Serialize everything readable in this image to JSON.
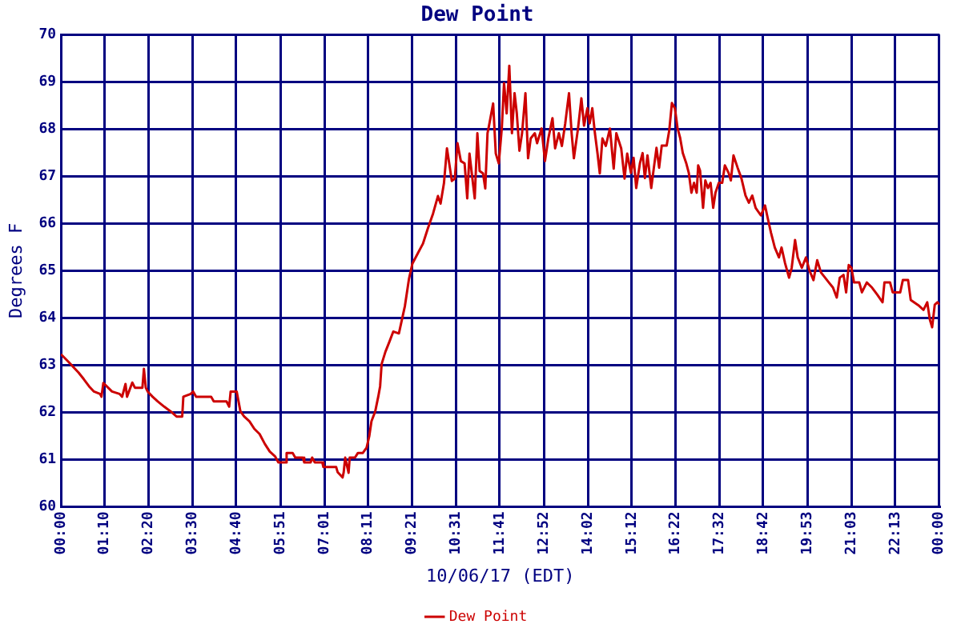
{
  "chart_data": {
    "type": "line",
    "title": "Dew Point",
    "xlabel": "10/06/17 (EDT)",
    "ylabel": "Degrees F",
    "legend": "bottom",
    "grid": true,
    "marker": "none",
    "line_style": "solid",
    "xlim": [
      0,
      23.4
    ],
    "xticks": [
      {
        "value": 0,
        "label": "00:00"
      },
      {
        "value": 1.167,
        "label": "01:10"
      },
      {
        "value": 2.333,
        "label": "02:20"
      },
      {
        "value": 3.5,
        "label": "03:30"
      },
      {
        "value": 4.667,
        "label": "04:40"
      },
      {
        "value": 5.85,
        "label": "05:51"
      },
      {
        "value": 7.017,
        "label": "07:01"
      },
      {
        "value": 8.183,
        "label": "08:11"
      },
      {
        "value": 9.35,
        "label": "09:21"
      },
      {
        "value": 10.517,
        "label": "10:31"
      },
      {
        "value": 11.683,
        "label": "11:41"
      },
      {
        "value": 12.867,
        "label": "12:52"
      },
      {
        "value": 14.033,
        "label": "14:02"
      },
      {
        "value": 15.2,
        "label": "15:12"
      },
      {
        "value": 16.367,
        "label": "16:22"
      },
      {
        "value": 17.533,
        "label": "17:32"
      },
      {
        "value": 18.7,
        "label": "18:42"
      },
      {
        "value": 19.883,
        "label": "19:53"
      },
      {
        "value": 21.05,
        "label": "21:03"
      },
      {
        "value": 22.217,
        "label": "22:13"
      },
      {
        "value": 23.38,
        "label": "00:00"
      }
    ],
    "ylim": [
      60,
      70
    ],
    "yticks": [
      60,
      61,
      62,
      63,
      64,
      65,
      66,
      67,
      68,
      69,
      70
    ],
    "series": [
      {
        "name": "Dew Point",
        "color": "#cc0000",
        "x": [
          0,
          0.2,
          0.34,
          0.47,
          0.61,
          0.75,
          0.88,
          1.04,
          1.08,
          1.13,
          1.22,
          1.36,
          1.56,
          1.63,
          1.72,
          1.76,
          1.9,
          1.97,
          2.17,
          2.21,
          2.26,
          2.31,
          2.44,
          2.58,
          2.75,
          2.92,
          3.08,
          3.23,
          3.26,
          3.46,
          3.52,
          3.6,
          4.0,
          4.07,
          4.41,
          4.48,
          4.52,
          4.68,
          4.78,
          4.88,
          5.02,
          5.15,
          5.29,
          5.43,
          5.56,
          5.7,
          5.79,
          5.97,
          6.01,
          6.17,
          6.24,
          6.44,
          6.48,
          6.65,
          6.69,
          6.76,
          6.96,
          6.99,
          7.33,
          7.37,
          7.5,
          7.53,
          7.57,
          7.66,
          7.69,
          7.83,
          7.91,
          8.04,
          8.14,
          8.21,
          8.27,
          8.37,
          8.45,
          8.5,
          8.54,
          8.64,
          8.75,
          8.85,
          9.0,
          9.16,
          9.27,
          9.36,
          9.5,
          9.64,
          9.77,
          9.91,
          10.04,
          10.11,
          10.2,
          10.28,
          10.35,
          10.41,
          10.49,
          10.56,
          10.65,
          10.75,
          10.82,
          10.88,
          10.95,
          11.02,
          11.09,
          11.15,
          11.24,
          11.3,
          11.36,
          11.4,
          11.51,
          11.58,
          11.66,
          11.74,
          11.8,
          11.87,
          11.94,
          12.01,
          12.08,
          12.14,
          12.21,
          12.28,
          12.37,
          12.44,
          12.51,
          12.62,
          12.68,
          12.8,
          12.89,
          12.98,
          13.09,
          13.16,
          13.26,
          13.34,
          13.43,
          13.53,
          13.6,
          13.66,
          13.77,
          13.86,
          13.93,
          14.02,
          14.08,
          14.15,
          14.22,
          14.29,
          14.35,
          14.42,
          14.51,
          14.62,
          14.72,
          14.79,
          14.92,
          15.01,
          15.08,
          15.18,
          15.25,
          15.32,
          15.42,
          15.49,
          15.55,
          15.62,
          15.72,
          15.79,
          15.86,
          15.93,
          16.0,
          16.13,
          16.2,
          16.27,
          16.35,
          16.42,
          16.49,
          16.56,
          16.65,
          16.72,
          16.79,
          16.86,
          16.93,
          16.97,
          17.02,
          17.1,
          17.16,
          17.23,
          17.3,
          17.37,
          17.43,
          17.52,
          17.61,
          17.68,
          17.78,
          17.84,
          17.91,
          18.02,
          18.12,
          18.23,
          18.32,
          18.41,
          18.5,
          18.64,
          18.75,
          18.82,
          18.91,
          19.01,
          19.12,
          19.19,
          19.28,
          19.39,
          19.46,
          19.55,
          19.62,
          19.73,
          19.84,
          19.93,
          20.04,
          20.14,
          20.24,
          20.35,
          20.45,
          20.56,
          20.66,
          20.74,
          20.84,
          20.91,
          20.98,
          21.05,
          21.12,
          21.26,
          21.33,
          21.46,
          21.6,
          21.74,
          21.88,
          21.93,
          22.08,
          22.15,
          22.35,
          22.42,
          22.56,
          22.63,
          22.83,
          22.97,
          23.07,
          23.14,
          23.2,
          23.27,
          23.34,
          23.4
        ],
        "values": [
          63.23,
          63.07,
          62.95,
          62.84,
          62.7,
          62.55,
          62.44,
          62.39,
          62.33,
          62.62,
          62.55,
          62.44,
          62.39,
          62.33,
          62.6,
          62.33,
          62.63,
          62.52,
          62.52,
          62.92,
          62.52,
          62.44,
          62.33,
          62.23,
          62.12,
          62.02,
          61.91,
          61.91,
          62.33,
          62.39,
          62.44,
          62.33,
          62.33,
          62.23,
          62.23,
          62.12,
          62.44,
          62.44,
          62.02,
          61.91,
          61.81,
          61.65,
          61.54,
          61.33,
          61.17,
          61.07,
          60.94,
          60.94,
          61.14,
          61.14,
          61.04,
          61.04,
          60.94,
          60.94,
          61.04,
          60.94,
          60.94,
          60.84,
          60.84,
          60.73,
          60.62,
          60.73,
          61.04,
          60.72,
          61.04,
          61.04,
          61.14,
          61.14,
          61.25,
          61.49,
          61.81,
          62.02,
          62.33,
          62.55,
          63.02,
          63.28,
          63.5,
          63.71,
          63.67,
          64.25,
          64.83,
          65.15,
          65.36,
          65.57,
          65.89,
          66.21,
          66.58,
          66.42,
          66.85,
          67.59,
          67.22,
          66.9,
          66.95,
          67.7,
          67.32,
          67.27,
          66.53,
          67.48,
          67.0,
          66.53,
          67.91,
          67.11,
          67.06,
          66.74,
          67.91,
          68.07,
          68.54,
          67.48,
          67.27,
          68.01,
          68.97,
          68.33,
          69.34,
          67.91,
          68.76,
          68.33,
          67.54,
          67.91,
          68.76,
          67.38,
          67.8,
          67.91,
          67.7,
          68.01,
          67.32,
          67.8,
          68.23,
          67.59,
          67.91,
          67.64,
          68.12,
          68.76,
          67.91,
          67.38,
          68.01,
          68.65,
          68.07,
          68.44,
          68.12,
          68.44,
          67.91,
          67.48,
          67.06,
          67.8,
          67.64,
          68.01,
          67.16,
          67.91,
          67.59,
          66.95,
          67.48,
          67.07,
          67.39,
          66.75,
          67.28,
          67.49,
          66.96,
          67.44,
          66.75,
          67.18,
          67.6,
          67.18,
          67.65,
          67.65,
          67.97,
          68.55,
          68.44,
          68.02,
          67.81,
          67.49,
          67.28,
          67.07,
          66.65,
          66.86,
          66.65,
          67.23,
          67.12,
          66.33,
          66.91,
          66.75,
          66.86,
          66.33,
          66.65,
          66.86,
          66.86,
          67.23,
          67.07,
          66.91,
          67.44,
          67.18,
          66.96,
          66.59,
          66.44,
          66.59,
          66.33,
          66.17,
          66.38,
          66.12,
          65.8,
          65.49,
          65.28,
          65.49,
          65.17,
          64.85,
          65.06,
          65.65,
          65.28,
          65.06,
          65.28,
          65.01,
          64.8,
          65.22,
          64.96,
          64.85,
          64.75,
          64.64,
          64.43,
          64.85,
          64.91,
          64.54,
          65.12,
          65.06,
          64.75,
          64.75,
          64.54,
          64.75,
          64.64,
          64.49,
          64.33,
          64.75,
          64.75,
          64.54,
          64.54,
          64.8,
          64.8,
          64.38,
          64.27,
          64.17,
          64.33,
          63.96,
          63.8,
          64.28,
          64.33,
          64.28
        ]
      }
    ]
  }
}
